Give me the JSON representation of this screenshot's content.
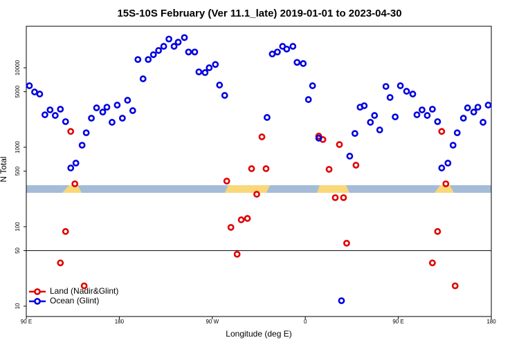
{
  "chart_data": {
    "type": "scatter",
    "title": "15S-10S February (Ver 11.1_late)   2019-01-01 to 2023-04-30",
    "x_label": "Longitude (deg E)",
    "y_label": "N Total",
    "xlim": [
      90,
      540
    ],
    "xticks": [
      {
        "value": 90,
        "label": "90 E"
      },
      {
        "value": 180,
        "label": "180"
      },
      {
        "value": 270,
        "label": "90 W"
      },
      {
        "value": 360,
        "label": "0"
      },
      {
        "value": 450,
        "label": "90 E"
      },
      {
        "value": 540,
        "label": "180"
      }
    ],
    "ylim": [
      7.4,
      33300
    ],
    "y_scale": "log",
    "yticks": [
      10,
      50,
      100,
      500,
      1000,
      5000,
      10000
    ],
    "hline": 50,
    "legend": "lower left",
    "series": [
      {
        "name": "Land (Nadir&Glint)",
        "color": "#e00000",
        "x": [
          123,
          128,
          133,
          137,
          146,
          284,
          288,
          294,
          298,
          304,
          308,
          313,
          318,
          322,
          373,
          377,
          383,
          389,
          393,
          397,
          400,
          409,
          483,
          488,
          492,
          496,
          505
        ],
        "values": [
          35,
          87,
          1580,
          346,
          18,
          375,
          98,
          45,
          122,
          127,
          537,
          256,
          1350,
          537,
          1380,
          1250,
          527,
          232,
          1080,
          232,
          62,
          594,
          35,
          87,
          1580,
          346,
          18
        ]
      },
      {
        "name": "Ocean (Glint)",
        "color": "#0000e0",
        "x": [
          93,
          98,
          103,
          108,
          113,
          118,
          123,
          128,
          133,
          138,
          144,
          148,
          153,
          158,
          164,
          168,
          173,
          178,
          183,
          188,
          193,
          198,
          203,
          208,
          213,
          218,
          223,
          228,
          233,
          237,
          243,
          247,
          253,
          257,
          263,
          267,
          273,
          277,
          282,
          323,
          328,
          333,
          338,
          342,
          348,
          352,
          358,
          363,
          367,
          373,
          395,
          403,
          408,
          413,
          417,
          423,
          427,
          432,
          438,
          442,
          447,
          452,
          458,
          464,
          468,
          473,
          478,
          483,
          488,
          492,
          498,
          503,
          507,
          513,
          517,
          523,
          527,
          532,
          537
        ],
        "values": [
          5940,
          4960,
          4670,
          2560,
          2950,
          2510,
          3010,
          2100,
          548,
          631,
          1060,
          1520,
          2320,
          3130,
          2770,
          3190,
          2060,
          3390,
          2320,
          3900,
          2890,
          12700,
          7260,
          12700,
          14600,
          16500,
          18600,
          23000,
          18600,
          21000,
          24000,
          15800,
          15800,
          8870,
          8690,
          10000,
          11000,
          6060,
          4490,
          2370,
          14900,
          15800,
          18600,
          17200,
          18600,
          11700,
          11300,
          3980,
          5940,
          1300,
          11.7,
          772,
          1490,
          3190,
          3330,
          2060,
          2510,
          1650,
          5820,
          4230,
          2410,
          5940,
          5060,
          4670,
          2560,
          2950,
          2510,
          3010,
          2100,
          548,
          631,
          1060,
          1520,
          2320,
          3130,
          2770,
          3190,
          2060,
          3390
        ]
      }
    ]
  }
}
